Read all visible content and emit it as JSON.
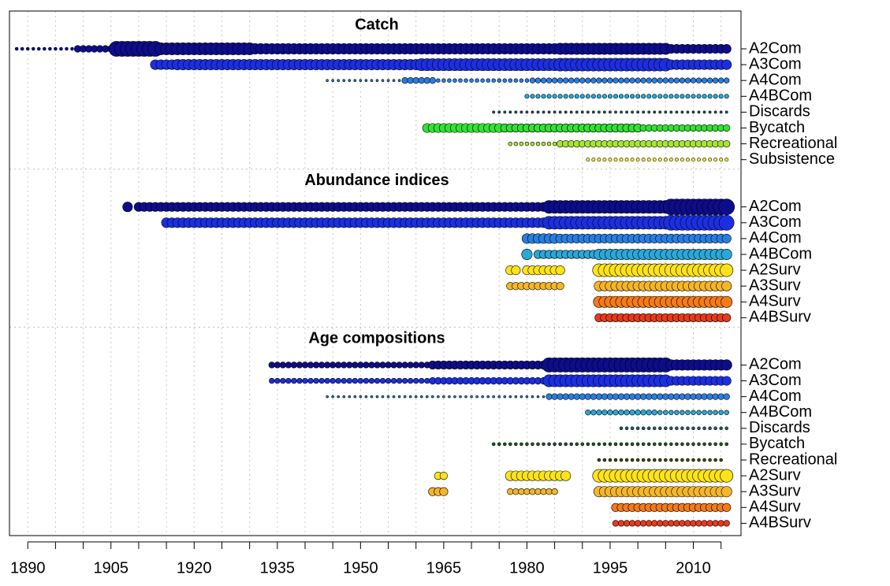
{
  "chart_data": {
    "type": "bubble",
    "xlim": [
      1886.7,
      2018.6
    ],
    "xticks": [
      1890,
      1905,
      1920,
      1935,
      1950,
      1965,
      1980,
      1995,
      2010
    ],
    "minor_xticks": [
      1890,
      1895,
      1900,
      1905,
      1910,
      1915,
      1920,
      1925,
      1930,
      1935,
      1940,
      1945,
      1950,
      1955,
      1960,
      1965,
      1970,
      1975,
      1980,
      1985,
      1990,
      1995,
      2000,
      2005,
      2010,
      2015
    ],
    "grid": true,
    "groups": [
      {
        "title": "Catch",
        "series": [
          {
            "name": "A2Com",
            "color": "#0d0d8c",
            "segments": [
              {
                "from": 1888,
                "to": 1898,
                "size": 0.1
              },
              {
                "from": 1899,
                "to": 1905,
                "size": 0.35
              },
              {
                "from": 1906,
                "to": 1913,
                "size": 0.9
              },
              {
                "from": 1914,
                "to": 1930,
                "size": 0.7
              },
              {
                "from": 1931,
                "to": 1985,
                "size": 0.6
              },
              {
                "from": 1986,
                "to": 2005,
                "size": 0.65
              },
              {
                "from": 2006,
                "to": 2016,
                "size": 0.5
              }
            ]
          },
          {
            "name": "A3Com",
            "color": "#1c2fe0",
            "segments": [
              {
                "from": 1913,
                "to": 1916,
                "size": 0.55
              },
              {
                "from": 1917,
                "to": 1960,
                "size": 0.6
              },
              {
                "from": 1961,
                "to": 1985,
                "size": 0.7
              },
              {
                "from": 1986,
                "to": 2005,
                "size": 0.75
              },
              {
                "from": 2006,
                "to": 2016,
                "size": 0.55
              }
            ]
          },
          {
            "name": "A4Com",
            "color": "#2a7de0",
            "segments": [
              {
                "from": 1944,
                "to": 1957,
                "size": 0.05
              },
              {
                "from": 1958,
                "to": 1963,
                "size": 0.3
              },
              {
                "from": 1964,
                "to": 1980,
                "size": 0.15
              },
              {
                "from": 1981,
                "to": 2016,
                "size": 0.25
              }
            ]
          },
          {
            "name": "A4BCom",
            "color": "#29a8d8",
            "segments": [
              {
                "from": 1980,
                "to": 2016,
                "size": 0.18
              }
            ]
          },
          {
            "name": "Discards",
            "color": "#206060",
            "segments": [
              {
                "from": 1974,
                "to": 2016,
                "size": 0.06
              }
            ]
          },
          {
            "name": "Bycatch",
            "color": "#33e033",
            "segments": [
              {
                "from": 1962,
                "to": 1975,
                "size": 0.5
              },
              {
                "from": 1976,
                "to": 2000,
                "size": 0.45
              },
              {
                "from": 2001,
                "to": 2016,
                "size": 0.35
              }
            ]
          },
          {
            "name": "Recreational",
            "color": "#a6e632",
            "segments": [
              {
                "from": 1977,
                "to": 1985,
                "size": 0.15
              },
              {
                "from": 1986,
                "to": 2016,
                "size": 0.35
              }
            ]
          },
          {
            "name": "Subsistence",
            "color": "#f0f020",
            "segments": [
              {
                "from": 1991,
                "to": 2016,
                "size": 0.12
              }
            ]
          }
        ]
      },
      {
        "title": "Abundance indices",
        "series": [
          {
            "name": "A2Com",
            "color": "#0d0d8c",
            "segments": [
              {
                "from": 1908,
                "to": 1908,
                "size": 0.55
              },
              {
                "from": 1910,
                "to": 1983,
                "size": 0.5
              },
              {
                "from": 1984,
                "to": 2005,
                "size": 0.75
              },
              {
                "from": 2006,
                "to": 2016,
                "size": 0.95
              }
            ]
          },
          {
            "name": "A3Com",
            "color": "#1c2fe0",
            "segments": [
              {
                "from": 1915,
                "to": 1983,
                "size": 0.55
              },
              {
                "from": 1984,
                "to": 2005,
                "size": 0.75
              },
              {
                "from": 2006,
                "to": 2016,
                "size": 0.9
              }
            ]
          },
          {
            "name": "A4Com",
            "color": "#2a7de0",
            "segments": [
              {
                "from": 1980,
                "to": 1985,
                "size": 0.55
              },
              {
                "from": 1986,
                "to": 2016,
                "size": 0.5
              }
            ]
          },
          {
            "name": "A4BCom",
            "color": "#29a8d8",
            "segments": [
              {
                "from": 1980,
                "to": 1980,
                "size": 0.6
              },
              {
                "from": 1982,
                "to": 1992,
                "size": 0.45
              },
              {
                "from": 1993,
                "to": 2016,
                "size": 0.6
              }
            ]
          },
          {
            "name": "A2Surv",
            "color": "#ffe31a",
            "segments": [
              {
                "from": 1977,
                "to": 1978,
                "size": 0.5
              },
              {
                "from": 1980,
                "to": 1986,
                "size": 0.5
              },
              {
                "from": 1993,
                "to": 2016,
                "size": 0.75
              }
            ]
          },
          {
            "name": "A3Surv",
            "color": "#f5b52a",
            "segments": [
              {
                "from": 1977,
                "to": 1986,
                "size": 0.4
              },
              {
                "from": 1993,
                "to": 2016,
                "size": 0.55
              }
            ]
          },
          {
            "name": "A4Surv",
            "color": "#f57a18",
            "segments": [
              {
                "from": 1993,
                "to": 2016,
                "size": 0.65
              }
            ]
          },
          {
            "name": "A4BSurv",
            "color": "#e83a1a",
            "segments": [
              {
                "from": 1993,
                "to": 2016,
                "size": 0.45
              }
            ]
          }
        ]
      },
      {
        "title": "Age compositions",
        "series": [
          {
            "name": "A2Com",
            "color": "#0d0d8c",
            "segments": [
              {
                "from": 1934,
                "to": 1962,
                "size": 0.3
              },
              {
                "from": 1963,
                "to": 1983,
                "size": 0.45
              },
              {
                "from": 1984,
                "to": 2005,
                "size": 0.85
              },
              {
                "from": 2006,
                "to": 2016,
                "size": 0.6
              }
            ]
          },
          {
            "name": "A3Com",
            "color": "#1c2fe0",
            "segments": [
              {
                "from": 1934,
                "to": 1962,
                "size": 0.25
              },
              {
                "from": 1963,
                "to": 1983,
                "size": 0.35
              },
              {
                "from": 1984,
                "to": 2005,
                "size": 0.7
              },
              {
                "from": 2006,
                "to": 2016,
                "size": 0.5
              }
            ]
          },
          {
            "name": "A4Com",
            "color": "#2a7de0",
            "segments": [
              {
                "from": 1944,
                "to": 1983,
                "size": 0.05
              },
              {
                "from": 1984,
                "to": 2016,
                "size": 0.3
              }
            ]
          },
          {
            "name": "A4BCom",
            "color": "#29a8d8",
            "segments": [
              {
                "from": 1991,
                "to": 2003,
                "size": 0.25
              },
              {
                "from": 2004,
                "to": 2016,
                "size": 0.2
              }
            ]
          },
          {
            "name": "Discards",
            "color": "#206060",
            "segments": [
              {
                "from": 1997,
                "to": 2016,
                "size": 0.1
              }
            ]
          },
          {
            "name": "Bycatch",
            "color": "#1a5a1a",
            "segments": [
              {
                "from": 1974,
                "to": 2016,
                "size": 0.1
              }
            ]
          },
          {
            "name": "Recreational",
            "color": "#3a4a10",
            "segments": [
              {
                "from": 1993,
                "to": 2015,
                "size": 0.1
              }
            ]
          },
          {
            "name": "A2Surv",
            "color": "#ffe31a",
            "segments": [
              {
                "from": 1964,
                "to": 1965,
                "size": 0.4
              },
              {
                "from": 1977,
                "to": 1987,
                "size": 0.55
              },
              {
                "from": 1993,
                "to": 2016,
                "size": 0.75
              }
            ]
          },
          {
            "name": "A3Surv",
            "color": "#f5b52a",
            "segments": [
              {
                "from": 1963,
                "to": 1965,
                "size": 0.45
              },
              {
                "from": 1977,
                "to": 1985,
                "size": 0.3
              },
              {
                "from": 1993,
                "to": 2016,
                "size": 0.6
              }
            ]
          },
          {
            "name": "A4Surv",
            "color": "#f57a18",
            "segments": [
              {
                "from": 1996,
                "to": 2016,
                "size": 0.45
              }
            ]
          },
          {
            "name": "A4BSurv",
            "color": "#e83a1a",
            "segments": [
              {
                "from": 1996,
                "to": 2016,
                "size": 0.3
              }
            ]
          }
        ]
      }
    ]
  }
}
